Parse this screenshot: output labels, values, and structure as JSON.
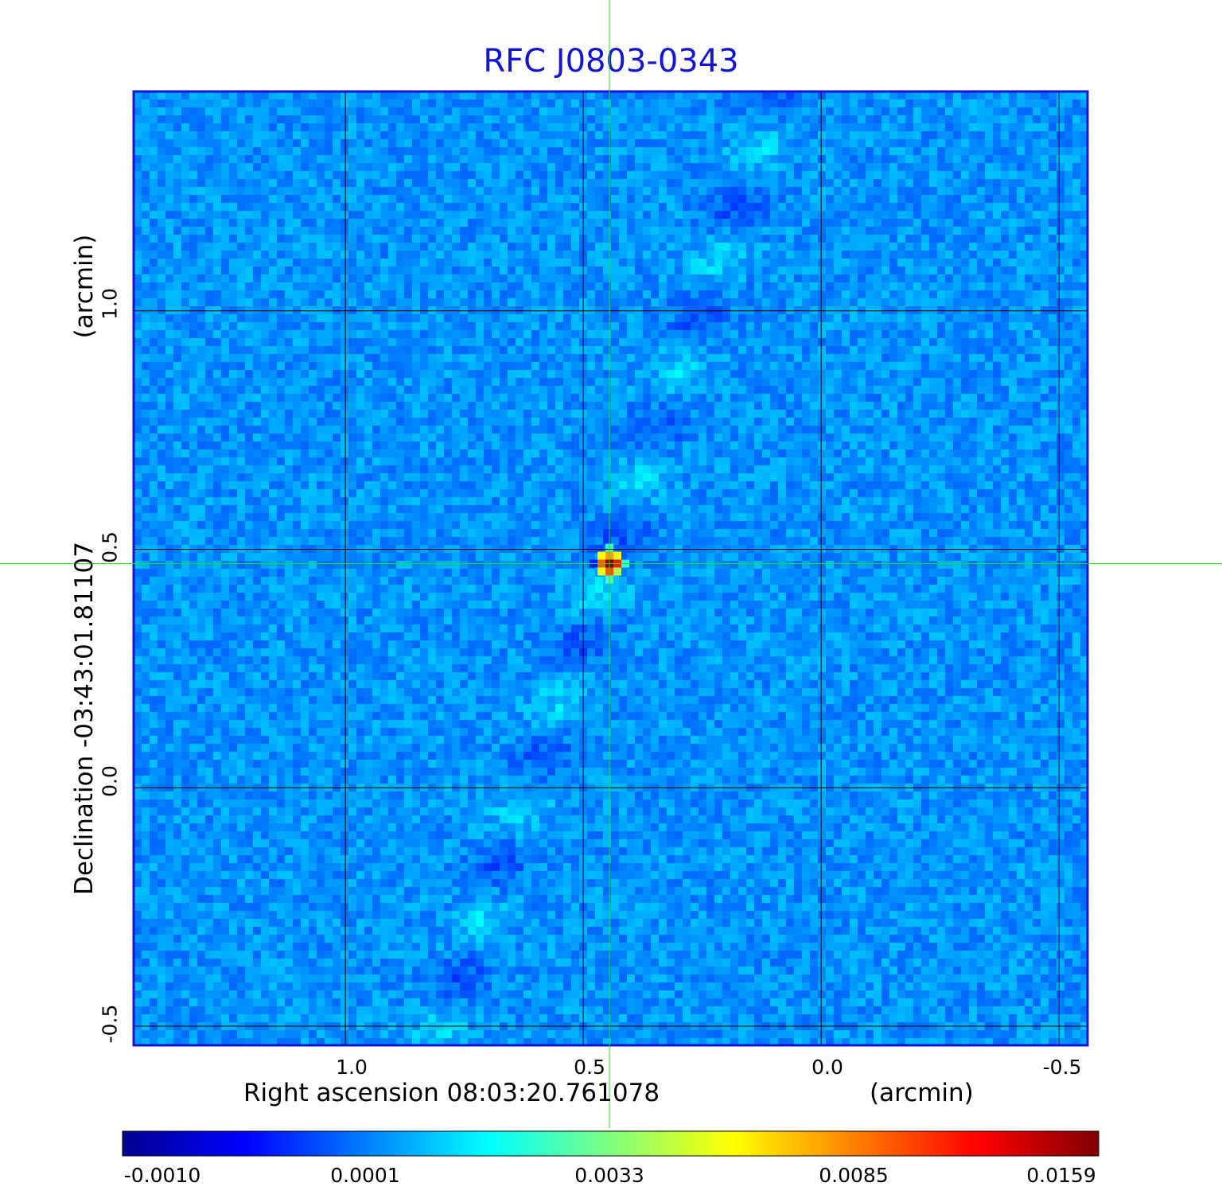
{
  "chart_data": {
    "type": "heatmap",
    "title": "RFC J0803-0343",
    "xlabel": "Right ascension  08:03:20.761078",
    "xunit": "(arcmin)",
    "ylabel": "Declination  -03:43:01.81107",
    "yunit": "(arcmin)",
    "x_ticks": [
      "1.0",
      "0.5",
      "0.0",
      "-0.5"
    ],
    "y_ticks": [
      "1.0",
      "0.5",
      "0.0",
      "-0.5"
    ],
    "x_tick_values": [
      1.0,
      0.5,
      0.0,
      -0.5
    ],
    "y_tick_values": [
      1.0,
      0.5,
      0.0,
      -0.5
    ],
    "xlim": [
      1.445,
      -0.56
    ],
    "ylim": [
      -0.54,
      1.46
    ],
    "grid": true,
    "crosshair": {
      "x": 0.445,
      "y": 0.47
    },
    "source_peak": {
      "x": 0.445,
      "y": 0.47,
      "value": 0.0159
    },
    "colorbar": {
      "colormap": "jet",
      "ticks": [
        "-0.0010",
        "0.0001",
        "0.0033",
        "0.0085",
        "0.0159"
      ],
      "range": [
        -0.001,
        0.0159
      ]
    }
  },
  "colors": {
    "title": "#1414d2",
    "frame": "#1414d2",
    "grid": "#000000",
    "crosshair": "#22dd22",
    "background_field": "#1e8cf0"
  }
}
